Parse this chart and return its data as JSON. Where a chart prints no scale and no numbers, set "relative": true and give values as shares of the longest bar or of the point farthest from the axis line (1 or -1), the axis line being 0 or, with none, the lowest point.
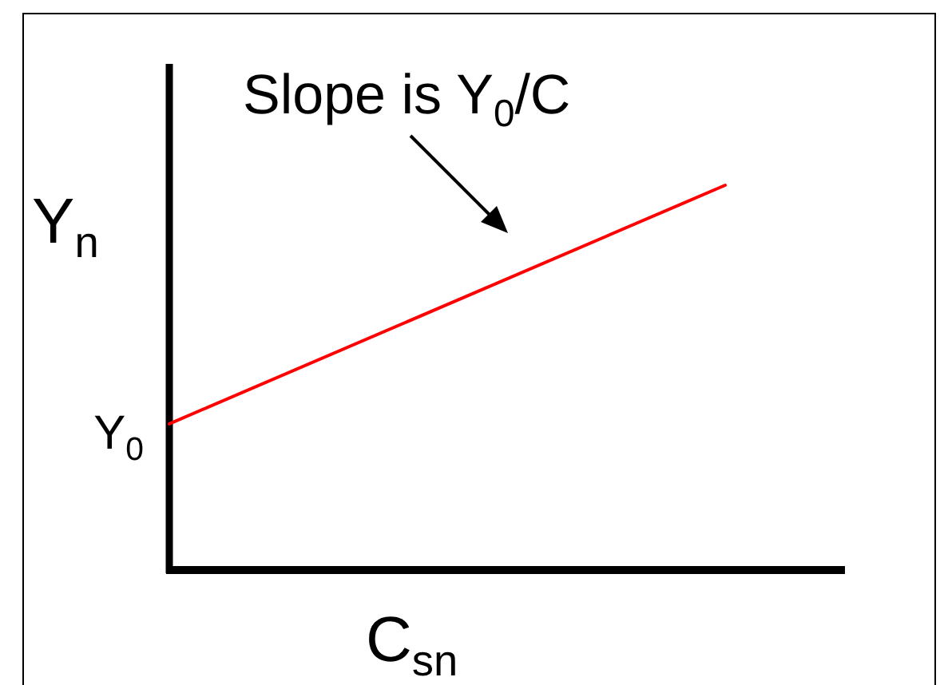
{
  "chart_data": {
    "type": "line",
    "relative": true,
    "categories": [
      null,
      null
    ],
    "series": [
      {
        "color": "#ff0000",
        "values": [
          0.38,
          1
        ]
      }
    ],
    "xlabel": "C$_{sn}$",
    "ylabel": "Y$_{n}$",
    "annotations": [
      "Slope is Y$_{0}$/C",
      "Y$_{0}$"
    ]
  }
}
